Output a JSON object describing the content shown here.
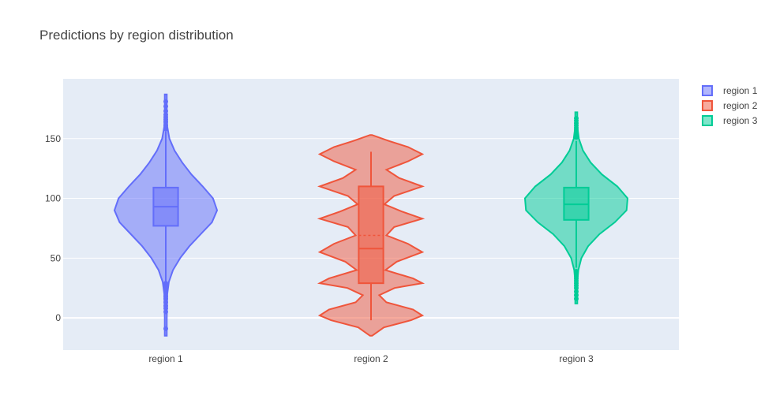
{
  "chart_data": {
    "type": "violin",
    "title": "Predictions by region distribution",
    "xlabel": "",
    "ylabel": "",
    "categories": [
      "region 1",
      "region 2",
      "region 3"
    ],
    "ylim": [
      -27,
      200
    ],
    "yticks": [
      0,
      50,
      100,
      150
    ],
    "grid": true,
    "legend_position": "top-right",
    "series": [
      {
        "name": "region 1",
        "color": "#636efa",
        "box": {
          "q1": 77,
          "median": 93,
          "q3": 109,
          "mean": 93,
          "whisker_low": 30,
          "whisker_high": 156
        },
        "kde_min": -15,
        "kde_max": 187,
        "density": [
          [
            -15,
            0.02
          ],
          [
            0,
            0.02
          ],
          [
            20,
            0.03
          ],
          [
            30,
            0.06
          ],
          [
            40,
            0.14
          ],
          [
            50,
            0.28
          ],
          [
            60,
            0.46
          ],
          [
            70,
            0.68
          ],
          [
            80,
            0.9
          ],
          [
            90,
            1.0
          ],
          [
            100,
            0.92
          ],
          [
            110,
            0.72
          ],
          [
            120,
            0.5
          ],
          [
            130,
            0.32
          ],
          [
            140,
            0.17
          ],
          [
            150,
            0.07
          ],
          [
            160,
            0.03
          ],
          [
            175,
            0.02
          ],
          [
            187,
            0.02
          ]
        ],
        "outliers": [
          -9,
          5,
          8,
          10,
          13,
          16,
          18,
          21,
          24,
          27,
          29,
          158,
          161,
          164,
          166,
          168,
          170,
          173,
          177,
          181
        ]
      },
      {
        "name": "region 2",
        "color": "#ef553b",
        "box": {
          "q1": 29,
          "median": 58,
          "q3": 110,
          "mean": 69,
          "whisker_low": -2,
          "whisker_high": 139
        },
        "kde_min": -15,
        "kde_max": 153,
        "density": [
          [
            -15,
            0.02
          ],
          [
            -8,
            0.25
          ],
          [
            -2,
            0.78
          ],
          [
            2,
            1.0
          ],
          [
            7,
            0.82
          ],
          [
            13,
            0.3
          ],
          [
            19,
            0.16
          ],
          [
            25,
            0.46
          ],
          [
            29,
            1.0
          ],
          [
            33,
            0.82
          ],
          [
            40,
            0.28
          ],
          [
            47,
            0.5
          ],
          [
            55,
            1.0
          ],
          [
            62,
            0.72
          ],
          [
            69,
            0.3
          ],
          [
            76,
            0.45
          ],
          [
            83,
            1.0
          ],
          [
            89,
            0.6
          ],
          [
            95,
            0.26
          ],
          [
            102,
            0.45
          ],
          [
            110,
            1.0
          ],
          [
            117,
            0.55
          ],
          [
            124,
            0.3
          ],
          [
            131,
            0.72
          ],
          [
            137,
            1.0
          ],
          [
            143,
            0.72
          ],
          [
            148,
            0.35
          ],
          [
            153,
            0.02
          ]
        ],
        "outliers": []
      },
      {
        "name": "region 3",
        "color": "#00cc96",
        "box": {
          "q1": 82,
          "median": 95,
          "q3": 109,
          "mean": 95,
          "whisker_low": 42,
          "whisker_high": 148
        },
        "kde_min": 12,
        "kde_max": 172,
        "density": [
          [
            12,
            0.02
          ],
          [
            30,
            0.02
          ],
          [
            40,
            0.04
          ],
          [
            50,
            0.1
          ],
          [
            60,
            0.23
          ],
          [
            70,
            0.45
          ],
          [
            80,
            0.75
          ],
          [
            90,
            0.98
          ],
          [
            100,
            1.0
          ],
          [
            110,
            0.8
          ],
          [
            120,
            0.5
          ],
          [
            130,
            0.28
          ],
          [
            140,
            0.13
          ],
          [
            150,
            0.05
          ],
          [
            160,
            0.02
          ],
          [
            172,
            0.02
          ]
        ],
        "outliers": [
          16,
          19,
          22,
          25,
          27,
          29,
          31,
          33,
          35,
          37,
          39,
          151,
          153,
          155,
          157,
          159,
          161,
          163,
          165,
          167
        ]
      }
    ]
  }
}
